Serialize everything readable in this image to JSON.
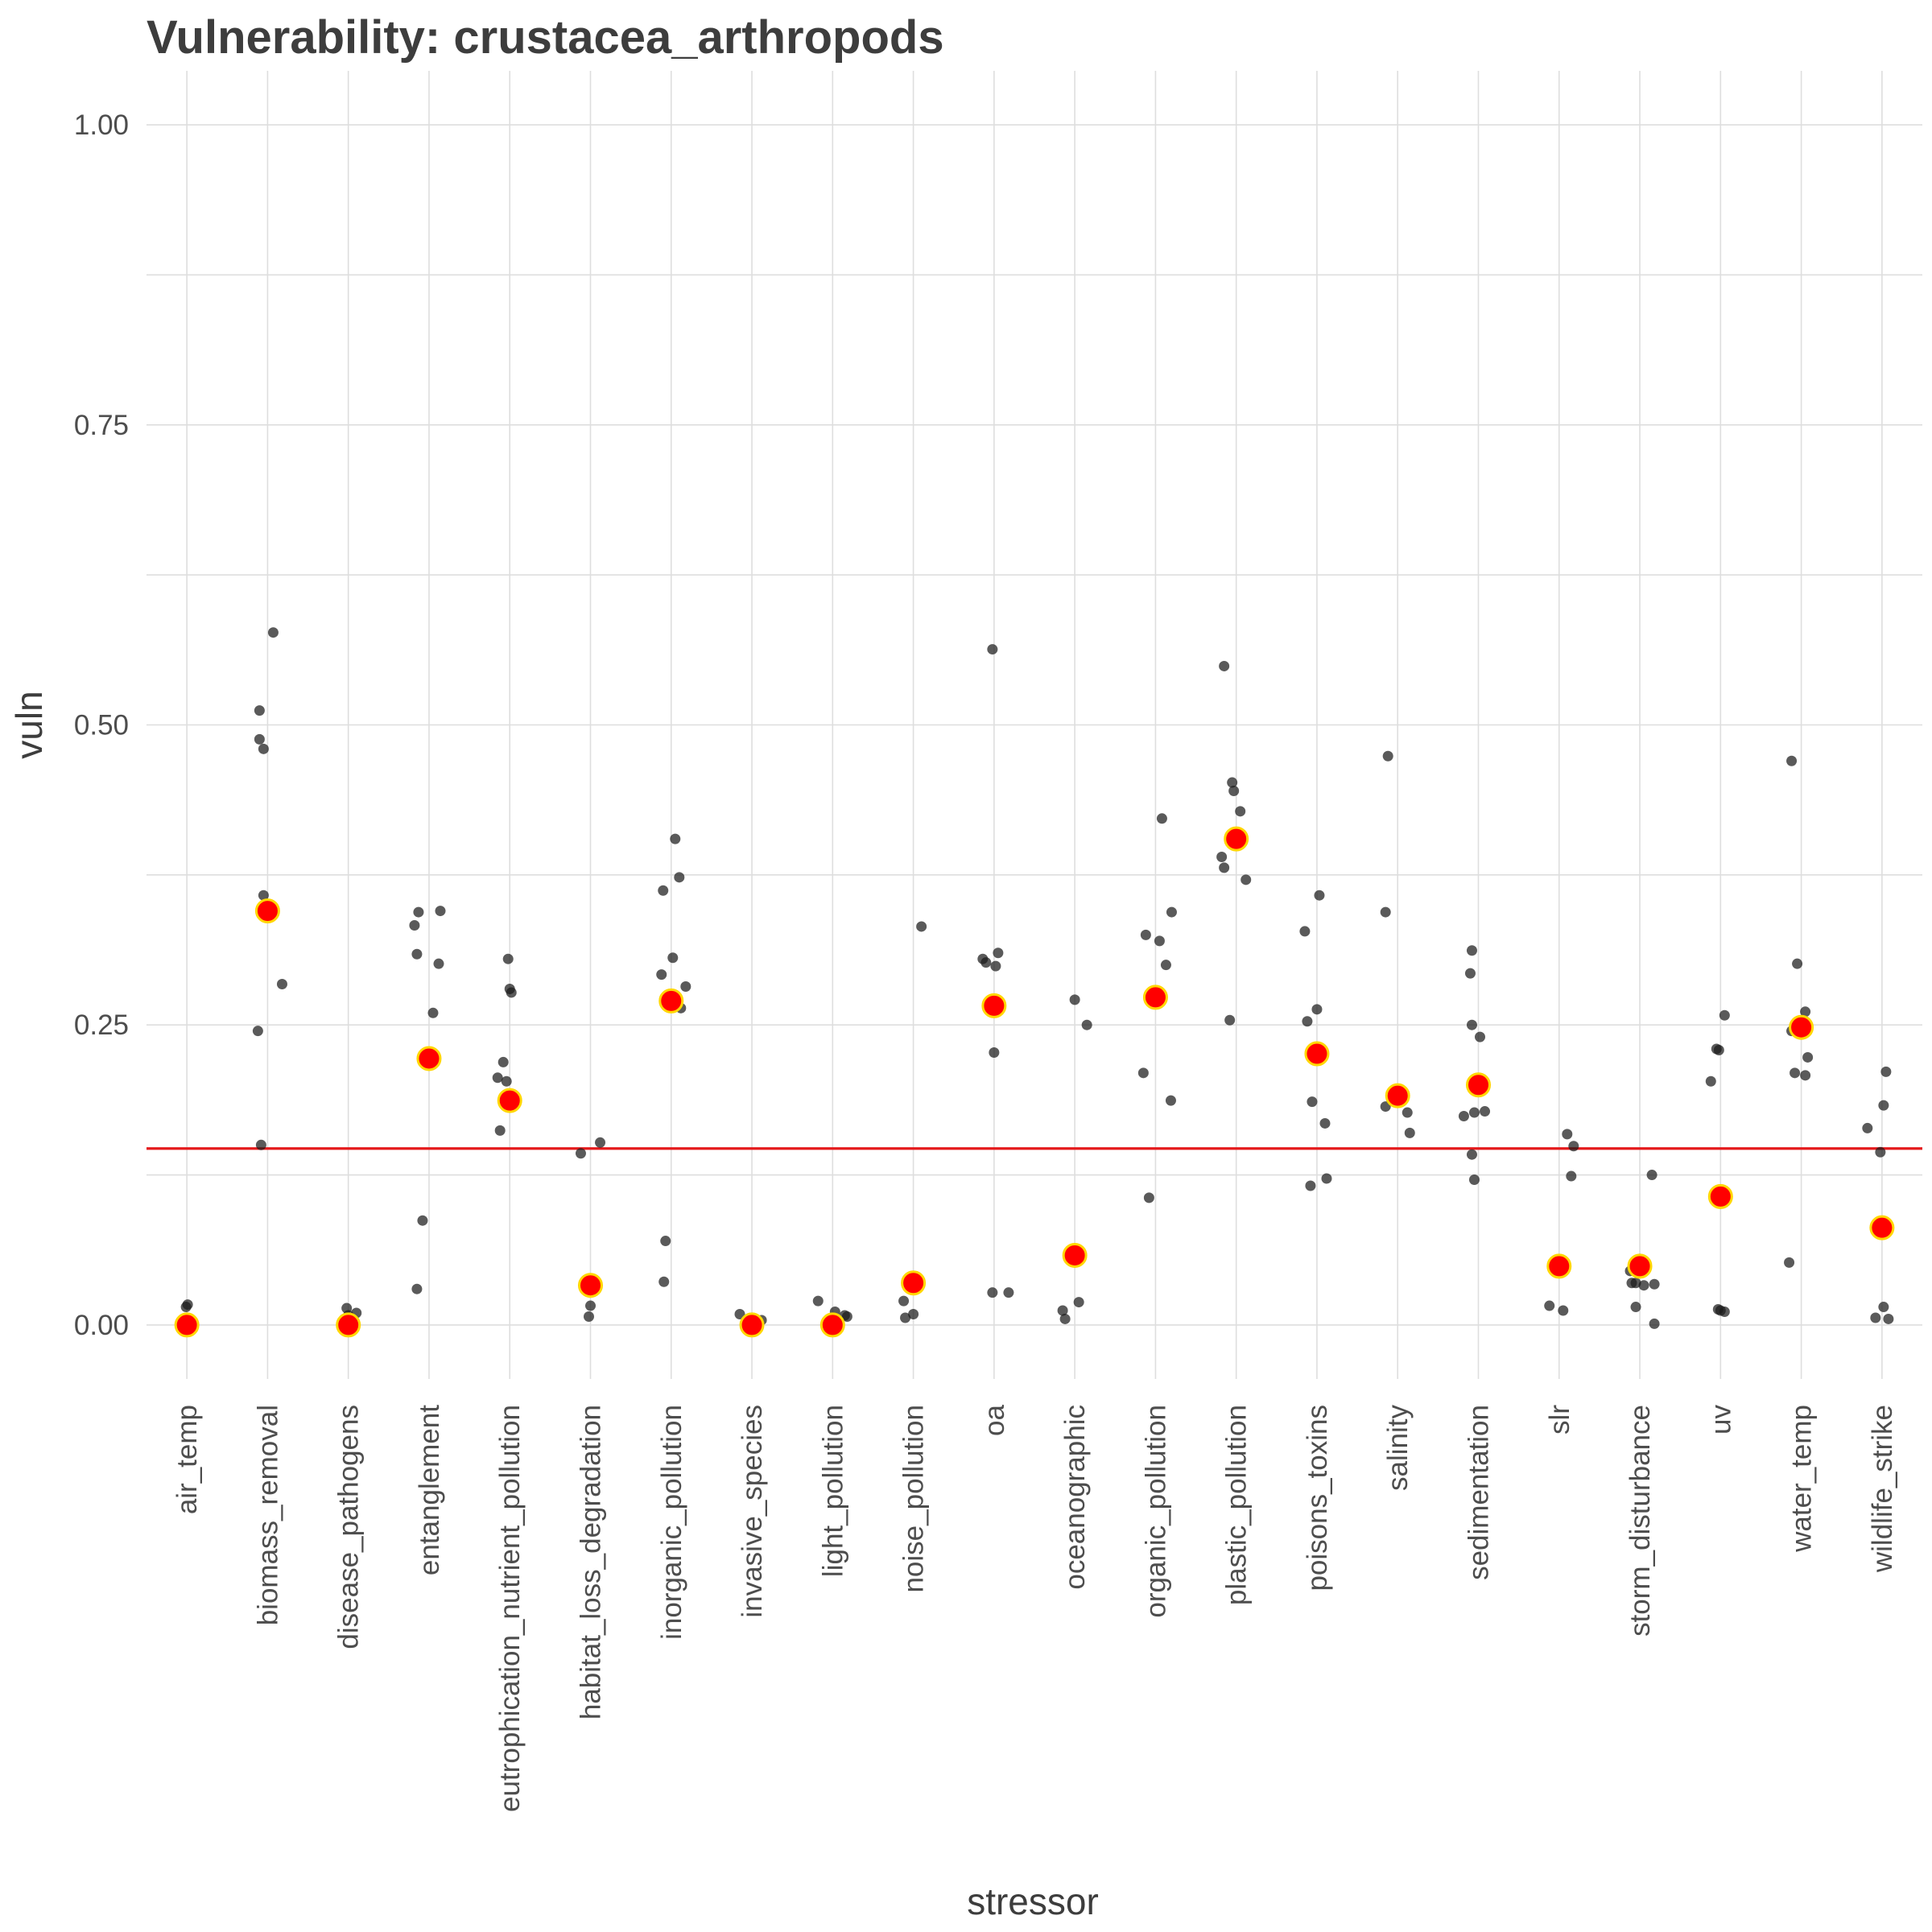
{
  "chart_data": {
    "type": "scatter",
    "title": "Vulnerability: crustacea_arthropods",
    "xlabel": "stressor",
    "ylabel": "vuln",
    "ylim": [
      -0.045,
      1.045
    ],
    "yticks": [
      0.0,
      0.25,
      0.5,
      0.75,
      1.0
    ],
    "ytick_labels": [
      "0.00",
      "0.25",
      "0.50",
      "0.75",
      "1.00"
    ],
    "grid": true,
    "reference_line": {
      "y": 0.147,
      "color": "#e41a1c"
    },
    "colors": {
      "points": "#1a1a1a",
      "mean_fill": "#ff0000",
      "mean_stroke": "#ffd700"
    },
    "categories": [
      "air_temp",
      "biomass_removal",
      "disease_pathogens",
      "entanglement",
      "eutrophication_nutrient_pollution",
      "habitat_loss_degradation",
      "inorganic_pollution",
      "invasive_species",
      "light_pollution",
      "noise_pollution",
      "oa",
      "oceanographic",
      "organic_pollution",
      "plastic_pollution",
      "poisons_toxins",
      "salinity",
      "sedimentation",
      "slr",
      "storm_disturbance",
      "uv",
      "water_temp",
      "wildlife_strike"
    ],
    "means": [
      0.0,
      0.345,
      0.0,
      0.222,
      0.187,
      0.033,
      0.27,
      0.0,
      0.0,
      0.035,
      0.266,
      0.058,
      0.273,
      0.405,
      0.226,
      0.191,
      0.2,
      0.049,
      0.049,
      0.107,
      0.248,
      0.081
    ],
    "points": [
      [
        [
          -0.01,
          0.015
        ],
        [
          0.01,
          0.017
        ],
        [
          0.03,
          0.005
        ],
        [
          -0.02,
          0.0
        ],
        [
          0.0,
          0.003
        ]
      ],
      [
        [
          -0.12,
          0.245
        ],
        [
          -0.1,
          0.512
        ],
        [
          -0.1,
          0.488
        ],
        [
          -0.05,
          0.48
        ],
        [
          -0.05,
          0.358
        ],
        [
          0.07,
          0.577
        ],
        [
          0.18,
          0.284
        ],
        [
          -0.08,
          0.15
        ]
      ],
      [
        [
          -0.02,
          0.014
        ],
        [
          0.1,
          0.01
        ],
        [
          0.05,
          0.002
        ],
        [
          -0.05,
          0.005
        ],
        [
          0.0,
          0.008
        ]
      ],
      [
        [
          -0.18,
          0.333
        ],
        [
          -0.13,
          0.344
        ],
        [
          -0.15,
          0.309
        ],
        [
          0.14,
          0.345
        ],
        [
          0.12,
          0.301
        ],
        [
          0.05,
          0.26
        ],
        [
          -0.08,
          0.087
        ],
        [
          -0.15,
          0.03
        ]
      ],
      [
        [
          -0.15,
          0.206
        ],
        [
          -0.08,
          0.219
        ],
        [
          -0.04,
          0.203
        ],
        [
          -0.12,
          0.162
        ],
        [
          -0.02,
          0.305
        ],
        [
          0.0,
          0.28
        ],
        [
          0.02,
          0.277
        ]
      ],
      [
        [
          -0.12,
          0.143
        ],
        [
          0.12,
          0.152
        ],
        [
          0.0,
          0.016
        ],
        [
          -0.02,
          0.007
        ]
      ],
      [
        [
          -0.1,
          0.362
        ],
        [
          -0.12,
          0.292
        ],
        [
          0.05,
          0.405
        ],
        [
          0.1,
          0.373
        ],
        [
          0.02,
          0.306
        ],
        [
          0.18,
          0.282
        ],
        [
          0.12,
          0.264
        ],
        [
          -0.07,
          0.07
        ],
        [
          -0.09,
          0.036
        ]
      ],
      [
        [
          -0.15,
          0.009
        ],
        [
          0.12,
          0.004
        ],
        [
          0.05,
          0.002
        ]
      ],
      [
        [
          -0.18,
          0.02
        ],
        [
          0.03,
          0.011
        ],
        [
          0.18,
          0.007
        ],
        [
          0.15,
          0.008
        ]
      ],
      [
        [
          -0.12,
          0.02
        ],
        [
          -0.1,
          0.006
        ],
        [
          0.0,
          0.009
        ],
        [
          0.1,
          0.332
        ]
      ],
      [
        [
          -0.14,
          0.305
        ],
        [
          -0.1,
          0.302
        ],
        [
          -0.02,
          0.563
        ],
        [
          0.05,
          0.31
        ],
        [
          0.02,
          0.299
        ],
        [
          0.0,
          0.227
        ],
        [
          -0.02,
          0.027
        ],
        [
          0.18,
          0.027
        ]
      ],
      [
        [
          0.0,
          0.271
        ],
        [
          0.15,
          0.25
        ],
        [
          -0.15,
          0.012
        ],
        [
          -0.12,
          0.005
        ],
        [
          0.05,
          0.019
        ]
      ],
      [
        [
          -0.12,
          0.325
        ],
        [
          -0.15,
          0.21
        ],
        [
          0.08,
          0.422
        ],
        [
          0.05,
          0.32
        ],
        [
          0.13,
          0.3
        ],
        [
          0.2,
          0.344
        ],
        [
          0.19,
          0.187
        ],
        [
          -0.08,
          0.106
        ]
      ],
      [
        [
          -0.18,
          0.39
        ],
        [
          -0.15,
          0.381
        ],
        [
          -0.15,
          0.549
        ],
        [
          -0.05,
          0.452
        ],
        [
          -0.03,
          0.445
        ],
        [
          0.05,
          0.428
        ],
        [
          0.12,
          0.371
        ],
        [
          -0.08,
          0.254
        ]
      ],
      [
        [
          -0.15,
          0.328
        ],
        [
          -0.12,
          0.253
        ],
        [
          0.03,
          0.358
        ],
        [
          0.0,
          0.263
        ],
        [
          -0.06,
          0.186
        ],
        [
          -0.08,
          0.116
        ],
        [
          0.1,
          0.168
        ],
        [
          0.12,
          0.122
        ]
      ],
      [
        [
          -0.15,
          0.182
        ],
        [
          -0.12,
          0.474
        ],
        [
          -0.15,
          0.344
        ],
        [
          0.02,
          0.195
        ],
        [
          0.12,
          0.177
        ],
        [
          0.15,
          0.16
        ]
      ],
      [
        [
          -0.18,
          0.174
        ],
        [
          -0.08,
          0.312
        ],
        [
          -0.1,
          0.293
        ],
        [
          -0.08,
          0.25
        ],
        [
          0.02,
          0.24
        ],
        [
          -0.05,
          0.177
        ],
        [
          0.08,
          0.178
        ],
        [
          -0.08,
          0.142
        ],
        [
          -0.05,
          0.121
        ]
      ],
      [
        [
          -0.12,
          0.016
        ],
        [
          0.05,
          0.012
        ],
        [
          0.1,
          0.159
        ],
        [
          0.18,
          0.149
        ],
        [
          0.15,
          0.124
        ]
      ],
      [
        [
          -0.12,
          0.045
        ],
        [
          -0.1,
          0.035
        ],
        [
          0.0,
          0.055
        ],
        [
          -0.05,
          0.035
        ],
        [
          0.05,
          0.033
        ],
        [
          0.15,
          0.125
        ],
        [
          0.18,
          0.034
        ],
        [
          0.18,
          0.001
        ],
        [
          -0.05,
          0.015
        ]
      ],
      [
        [
          -0.12,
          0.203
        ],
        [
          -0.05,
          0.23
        ],
        [
          -0.02,
          0.229
        ],
        [
          0.05,
          0.258
        ],
        [
          -0.03,
          0.013
        ],
        [
          0.0,
          0.012
        ],
        [
          0.05,
          0.011
        ]
      ],
      [
        [
          -0.12,
          0.245
        ],
        [
          -0.12,
          0.47
        ],
        [
          -0.05,
          0.301
        ],
        [
          0.05,
          0.261
        ],
        [
          0.08,
          0.223
        ],
        [
          -0.08,
          0.21
        ],
        [
          0.05,
          0.208
        ],
        [
          -0.15,
          0.052
        ]
      ],
      [
        [
          -0.18,
          0.164
        ],
        [
          -0.02,
          0.144
        ],
        [
          0.02,
          0.183
        ],
        [
          0.05,
          0.211
        ],
        [
          -0.08,
          0.006
        ],
        [
          0.02,
          0.015
        ],
        [
          0.08,
          0.005
        ]
      ]
    ]
  }
}
